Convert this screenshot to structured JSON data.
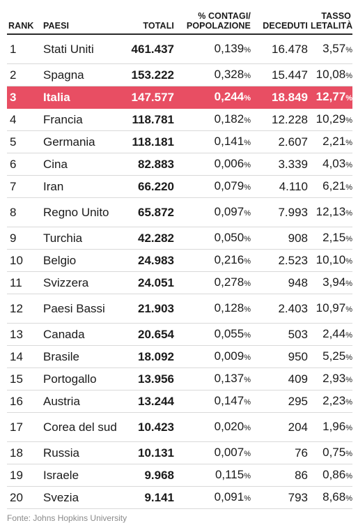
{
  "headers": {
    "rank": "RANK",
    "country": "PAESI",
    "total": "TOTALI",
    "pct_line1": "% CONTAGI/",
    "pct_line2": "POPOLAZIONE",
    "deaths": "DECEDUTI",
    "lethality_line1": "TASSO",
    "lethality_line2": "LETALITÀ"
  },
  "percent_sign": "%",
  "highlight_color": "#e84e63",
  "rows": [
    {
      "rank": "1",
      "name": "Stati Uniti",
      "total": "461.437",
      "pct": "0,139",
      "deaths": "16.478",
      "lethality": "3,57"
    },
    {
      "rank": "2",
      "name": "Spagna",
      "total": "153.222",
      "pct": "0,328",
      "deaths": "15.447",
      "lethality": "10,08"
    },
    {
      "rank": "3",
      "name": "Italia",
      "total": "147.577",
      "pct": "0,244",
      "deaths": "18.849",
      "lethality": "12,77",
      "highlight": true
    },
    {
      "rank": "4",
      "name": "Francia",
      "total": "118.781",
      "pct": "0,182",
      "deaths": "12.228",
      "lethality": "10,29"
    },
    {
      "rank": "5",
      "name": "Germania",
      "total": "118.181",
      "pct": "0,141",
      "deaths": "2.607",
      "lethality": "2,21"
    },
    {
      "rank": "6",
      "name": "Cina",
      "total": "82.883",
      "pct": "0,006",
      "deaths": "3.339",
      "lethality": "4,03"
    },
    {
      "rank": "7",
      "name": "Iran",
      "total": "66.220",
      "pct": "0,079",
      "deaths": "4.110",
      "lethality": "6,21"
    },
    {
      "rank": "8",
      "name": "Regno Unito",
      "total": "65.872",
      "pct": "0,097",
      "deaths": "7.993",
      "lethality": "12,13"
    },
    {
      "rank": "9",
      "name": "Turchia",
      "total": "42.282",
      "pct": "0,050",
      "deaths": "908",
      "lethality": "2,15"
    },
    {
      "rank": "10",
      "name": "Belgio",
      "total": "24.983",
      "pct": "0,216",
      "deaths": "2.523",
      "lethality": "10,10"
    },
    {
      "rank": "11",
      "name": "Svizzera",
      "total": "24.051",
      "pct": "0,278",
      "deaths": "948",
      "lethality": "3,94"
    },
    {
      "rank": "12",
      "name": "Paesi Bassi",
      "total": "21.903",
      "pct": "0,128",
      "deaths": "2.403",
      "lethality": "10,97"
    },
    {
      "rank": "13",
      "name": "Canada",
      "total": "20.654",
      "pct": "0,055",
      "deaths": "503",
      "lethality": "2,44"
    },
    {
      "rank": "14",
      "name": "Brasile",
      "total": "18.092",
      "pct": "0,009",
      "deaths": "950",
      "lethality": "5,25"
    },
    {
      "rank": "15",
      "name": "Portogallo",
      "total": "13.956",
      "pct": "0,137",
      "deaths": "409",
      "lethality": "2,93"
    },
    {
      "rank": "16",
      "name": "Austria",
      "total": "13.244",
      "pct": "0,147",
      "deaths": "295",
      "lethality": "2,23"
    },
    {
      "rank": "17",
      "name": "Corea del sud",
      "total": "10.423",
      "pct": "0,020",
      "deaths": "204",
      "lethality": "1,96"
    },
    {
      "rank": "18",
      "name": "Russia",
      "total": "10.131",
      "pct": "0,007",
      "deaths": "76",
      "lethality": "0,75"
    },
    {
      "rank": "19",
      "name": "Israele",
      "total": "9.968",
      "pct": "0,115",
      "deaths": "86",
      "lethality": "0,86"
    },
    {
      "rank": "20",
      "name": "Svezia",
      "total": "9.141",
      "pct": "0,091",
      "deaths": "793",
      "lethality": "8,68"
    }
  ],
  "source": "Fonte: Johns Hopkins University"
}
